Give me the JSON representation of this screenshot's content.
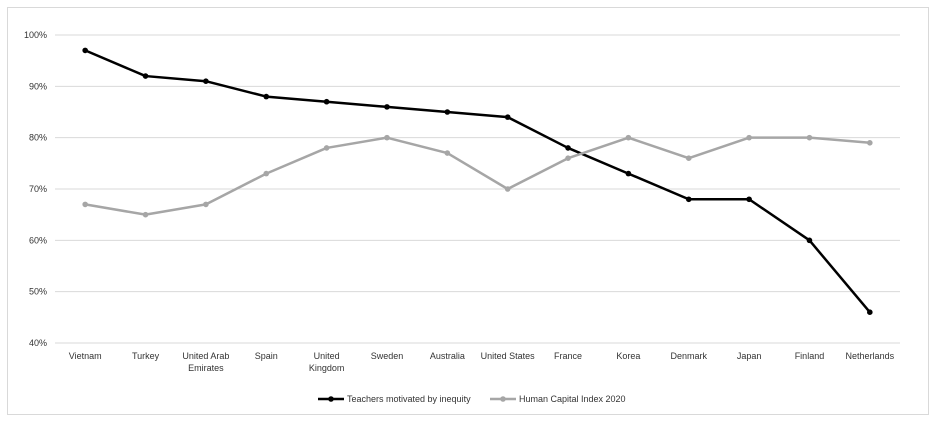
{
  "chart_data": {
    "type": "line",
    "title": "",
    "xlabel": "",
    "ylabel": "",
    "ylim": [
      40,
      100
    ],
    "y_ticks": [
      "40%",
      "50%",
      "60%",
      "70%",
      "80%",
      "90%",
      "100%"
    ],
    "y_tick_values": [
      40,
      50,
      60,
      70,
      80,
      90,
      100
    ],
    "grid": true,
    "legend_position": "bottom-center",
    "categories": [
      [
        "Vietnam"
      ],
      [
        "Turkey"
      ],
      [
        "United Arab",
        "Emirates"
      ],
      [
        "Spain"
      ],
      [
        "United",
        "Kingdom"
      ],
      [
        "Sweden"
      ],
      [
        "Australia"
      ],
      [
        "United States"
      ],
      [
        "France"
      ],
      [
        "Korea"
      ],
      [
        "Denmark"
      ],
      [
        "Japan"
      ],
      [
        "Finland"
      ],
      [
        "Netherlands"
      ]
    ],
    "series": [
      {
        "name": "Teachers motivated by inequity",
        "color": "#000000",
        "values": [
          97,
          92,
          91,
          88,
          87,
          86,
          85,
          84,
          78,
          73,
          68,
          68,
          60,
          46
        ]
      },
      {
        "name": "Human Capital Index 2020",
        "color": "#a6a6a6",
        "values": [
          67,
          65,
          67,
          73,
          78,
          80,
          77,
          70,
          76,
          80,
          76,
          80,
          80,
          79
        ]
      }
    ]
  }
}
